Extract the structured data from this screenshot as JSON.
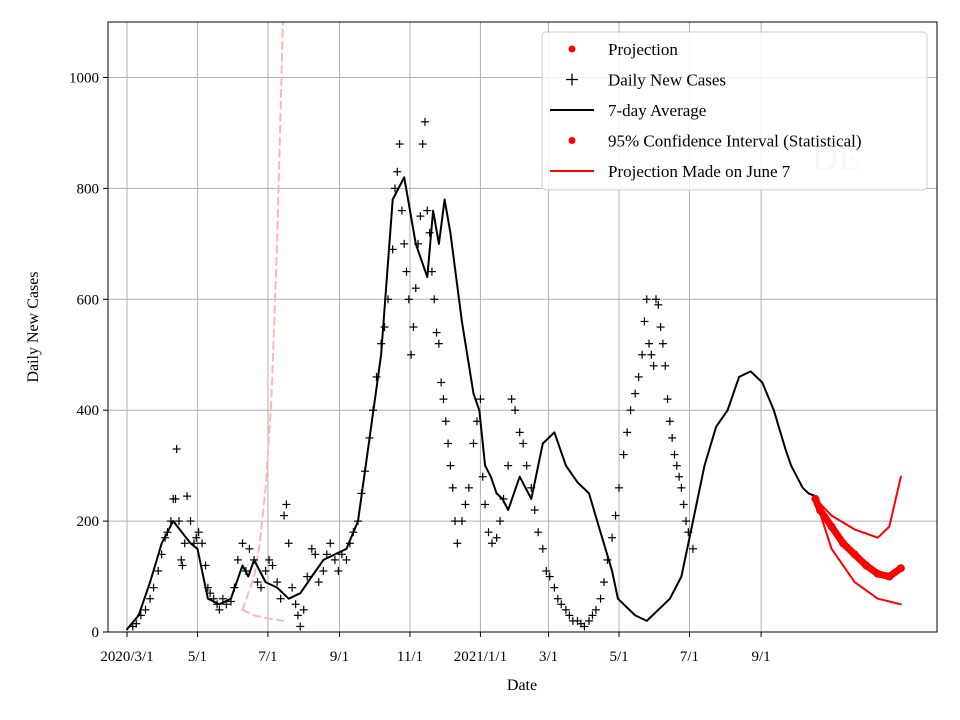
{
  "chart_data": {
    "type": "line",
    "title": "",
    "watermark": "DE",
    "xlabel": "Date",
    "ylabel": "Daily New Cases",
    "x_ticks": [
      "2020/3/1",
      "5/1",
      "7/1",
      "9/1",
      "11/1",
      "2021/1/1",
      "3/1",
      "5/1",
      "7/1",
      "9/1"
    ],
    "y_ticks": [
      0,
      200,
      400,
      600,
      800,
      1000
    ],
    "ylim": [
      0,
      1100
    ],
    "grid": true,
    "legend": {
      "position": "top-right",
      "entries": [
        {
          "label": "Projection",
          "style": "dot",
          "color": "#ff0000"
        },
        {
          "label": "Daily New Cases",
          "style": "plus",
          "color": "#000000"
        },
        {
          "label": "7-day Average",
          "style": "line",
          "color": "#000000"
        },
        {
          "label": "95% Confidence Interval (Statistical)",
          "style": "dot",
          "color": "#ff0000"
        },
        {
          "label": "Projection Made on June 7",
          "style": "line",
          "color": "#ff0000"
        }
      ]
    },
    "series": [
      {
        "name": "7-day Average",
        "color": "#000000",
        "day_offsets": [
          0,
          10,
          20,
          30,
          40,
          55,
          61,
          70,
          80,
          90,
          100,
          105,
          110,
          115,
          120,
          130,
          140,
          150,
          160,
          170,
          180,
          190,
          200,
          210,
          220,
          230,
          240,
          250,
          260,
          265,
          270,
          275,
          280,
          290,
          300,
          305,
          310,
          315,
          320,
          325,
          330,
          340,
          350,
          360,
          370,
          380,
          390,
          400,
          410,
          420,
          425,
          430,
          440,
          450,
          460,
          470,
          480,
          490,
          500,
          510,
          520,
          530,
          540,
          550,
          560,
          570,
          575,
          580,
          585,
          590,
          596
        ],
        "values": [
          5,
          30,
          90,
          160,
          200,
          160,
          150,
          60,
          50,
          60,
          120,
          100,
          130,
          110,
          90,
          80,
          60,
          70,
          100,
          130,
          140,
          150,
          200,
          350,
          500,
          780,
          820,
          700,
          640,
          760,
          700,
          780,
          720,
          560,
          430,
          400,
          300,
          280,
          250,
          240,
          220,
          280,
          240,
          340,
          360,
          300,
          270,
          250,
          180,
          110,
          60,
          50,
          30,
          20,
          40,
          60,
          100,
          200,
          300,
          370,
          400,
          460,
          470,
          450,
          400,
          330,
          300,
          280,
          260,
          250,
          245
        ]
      },
      {
        "name": "Projection",
        "color": "#ff0000",
        "day_offsets": [
          596,
          600,
          610,
          620,
          630,
          640,
          650,
          660,
          670
        ],
        "values": [
          240,
          220,
          190,
          160,
          140,
          120,
          105,
          100,
          115
        ]
      },
      {
        "name": "95% CI upper",
        "color": "#ff0000",
        "day_offsets": [
          596,
          610,
          630,
          650,
          660,
          670
        ],
        "values": [
          240,
          210,
          185,
          170,
          190,
          280
        ]
      },
      {
        "name": "95% CI lower",
        "color": "#ff0000",
        "day_offsets": [
          596,
          610,
          630,
          650,
          670
        ],
        "values": [
          240,
          150,
          90,
          60,
          50
        ]
      },
      {
        "name": "Projection Made on June 7 (upper)",
        "color": "#ffb6b6",
        "day_offsets": [
          100,
          110,
          115,
          120,
          125,
          130,
          135
        ],
        "values": [
          40,
          100,
          160,
          260,
          420,
          700,
          1100
        ]
      },
      {
        "name": "Projection Made on June 7 (lower)",
        "color": "#ffb6b6",
        "day_offsets": [
          100,
          110,
          120,
          130,
          135
        ],
        "values": [
          40,
          30,
          25,
          22,
          20
        ]
      }
    ],
    "daily_scatter": {
      "name": "Daily New Cases",
      "marker": "+",
      "color": "#000000",
      "points": [
        [
          5,
          10
        ],
        [
          8,
          15
        ],
        [
          12,
          30
        ],
        [
          16,
          40
        ],
        [
          20,
          60
        ],
        [
          23,
          80
        ],
        [
          27,
          110
        ],
        [
          30,
          140
        ],
        [
          33,
          170
        ],
        [
          35,
          180
        ],
        [
          38,
          200
        ],
        [
          40,
          240
        ],
        [
          42,
          240
        ],
        [
          43,
          330
        ],
        [
          45,
          200
        ],
        [
          47,
          130
        ],
        [
          48,
          120
        ],
        [
          50,
          160
        ],
        [
          52,
          245
        ],
        [
          55,
          200
        ],
        [
          58,
          160
        ],
        [
          60,
          170
        ],
        [
          62,
          180
        ],
        [
          65,
          160
        ],
        [
          68,
          120
        ],
        [
          70,
          80
        ],
        [
          72,
          70
        ],
        [
          75,
          60
        ],
        [
          78,
          50
        ],
        [
          80,
          40
        ],
        [
          83,
          60
        ],
        [
          86,
          50
        ],
        [
          90,
          55
        ],
        [
          93,
          80
        ],
        [
          96,
          130
        ],
        [
          100,
          160
        ],
        [
          103,
          110
        ],
        [
          106,
          150
        ],
        [
          110,
          130
        ],
        [
          113,
          90
        ],
        [
          116,
          80
        ],
        [
          120,
          110
        ],
        [
          123,
          130
        ],
        [
          126,
          120
        ],
        [
          130,
          90
        ],
        [
          133,
          60
        ],
        [
          136,
          210
        ],
        [
          138,
          230
        ],
        [
          140,
          160
        ],
        [
          143,
          80
        ],
        [
          146,
          50
        ],
        [
          148,
          30
        ],
        [
          150,
          10
        ],
        [
          153,
          40
        ],
        [
          156,
          100
        ],
        [
          160,
          150
        ],
        [
          163,
          140
        ],
        [
          166,
          90
        ],
        [
          170,
          110
        ],
        [
          173,
          140
        ],
        [
          176,
          160
        ],
        [
          180,
          130
        ],
        [
          183,
          110
        ],
        [
          186,
          140
        ],
        [
          190,
          130
        ],
        [
          193,
          160
        ],
        [
          196,
          180
        ],
        [
          200,
          200
        ],
        [
          203,
          250
        ],
        [
          206,
          290
        ],
        [
          210,
          350
        ],
        [
          213,
          400
        ],
        [
          216,
          460
        ],
        [
          220,
          520
        ],
        [
          223,
          550
        ],
        [
          226,
          600
        ],
        [
          230,
          690
        ],
        [
          232,
          800
        ],
        [
          234,
          830
        ],
        [
          236,
          880
        ],
        [
          238,
          760
        ],
        [
          240,
          700
        ],
        [
          242,
          650
        ],
        [
          244,
          600
        ],
        [
          246,
          500
        ],
        [
          248,
          550
        ],
        [
          250,
          620
        ],
        [
          252,
          700
        ],
        [
          254,
          750
        ],
        [
          256,
          880
        ],
        [
          258,
          920
        ],
        [
          260,
          760
        ],
        [
          262,
          720
        ],
        [
          264,
          650
        ],
        [
          266,
          600
        ],
        [
          268,
          540
        ],
        [
          270,
          520
        ],
        [
          272,
          450
        ],
        [
          274,
          420
        ],
        [
          276,
          380
        ],
        [
          278,
          340
        ],
        [
          280,
          300
        ],
        [
          282,
          260
        ],
        [
          284,
          200
        ],
        [
          286,
          160
        ],
        [
          290,
          200
        ],
        [
          293,
          230
        ],
        [
          296,
          260
        ],
        [
          300,
          340
        ],
        [
          303,
          380
        ],
        [
          306,
          420
        ],
        [
          308,
          280
        ],
        [
          310,
          230
        ],
        [
          313,
          180
        ],
        [
          316,
          160
        ],
        [
          320,
          170
        ],
        [
          323,
          200
        ],
        [
          326,
          240
        ],
        [
          330,
          300
        ],
        [
          333,
          420
        ],
        [
          336,
          400
        ],
        [
          340,
          360
        ],
        [
          343,
          340
        ],
        [
          346,
          300
        ],
        [
          350,
          260
        ],
        [
          353,
          220
        ],
        [
          356,
          180
        ],
        [
          360,
          150
        ],
        [
          363,
          110
        ],
        [
          366,
          100
        ],
        [
          370,
          80
        ],
        [
          373,
          60
        ],
        [
          376,
          50
        ],
        [
          380,
          40
        ],
        [
          383,
          30
        ],
        [
          386,
          20
        ],
        [
          390,
          20
        ],
        [
          393,
          15
        ],
        [
          396,
          10
        ],
        [
          400,
          20
        ],
        [
          403,
          30
        ],
        [
          406,
          40
        ],
        [
          410,
          60
        ],
        [
          413,
          90
        ],
        [
          416,
          130
        ],
        [
          420,
          170
        ],
        [
          423,
          210
        ],
        [
          426,
          260
        ],
        [
          430,
          320
        ],
        [
          433,
          360
        ],
        [
          436,
          400
        ],
        [
          440,
          430
        ],
        [
          443,
          460
        ],
        [
          446,
          500
        ],
        [
          448,
          560
        ],
        [
          450,
          600
        ],
        [
          452,
          520
        ],
        [
          454,
          500
        ],
        [
          456,
          480
        ],
        [
          458,
          600
        ],
        [
          460,
          590
        ],
        [
          462,
          550
        ],
        [
          464,
          520
        ],
        [
          466,
          480
        ],
        [
          468,
          420
        ],
        [
          470,
          380
        ],
        [
          472,
          350
        ],
        [
          474,
          320
        ],
        [
          476,
          300
        ],
        [
          478,
          280
        ],
        [
          480,
          260
        ],
        [
          482,
          230
        ],
        [
          484,
          200
        ],
        [
          486,
          180
        ],
        [
          490,
          150
        ]
      ]
    }
  }
}
